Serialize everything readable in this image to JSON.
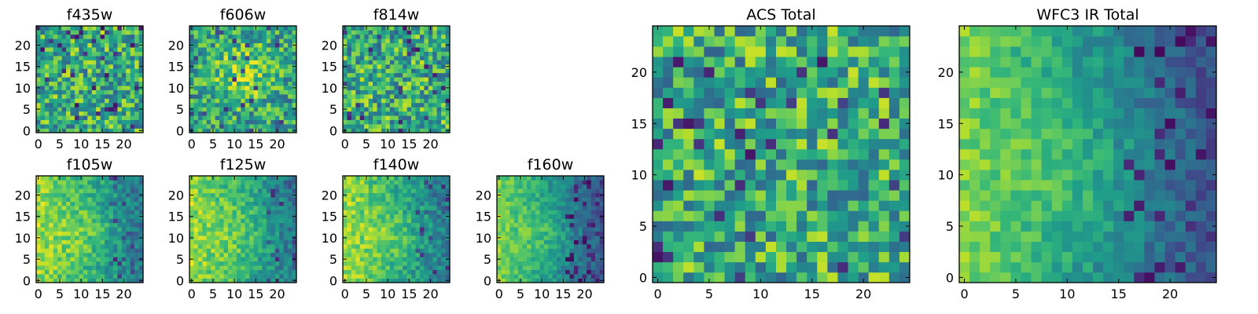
{
  "chart_data": [
    {
      "type": "heatmap",
      "title": "f435w",
      "x_ticks": [
        "0",
        "5",
        "10",
        "15",
        "20"
      ],
      "y_ticks": [
        "0",
        "5",
        "10",
        "15",
        "20"
      ],
      "xlim": [
        -0.5,
        24.5
      ],
      "ylim": [
        -0.5,
        24.5
      ],
      "grid": 25,
      "colormap": "viridis",
      "pattern": "noise"
    },
    {
      "type": "heatmap",
      "title": "f606w",
      "x_ticks": [
        "0",
        "5",
        "10",
        "15",
        "20"
      ],
      "y_ticks": [
        "0",
        "5",
        "10",
        "15",
        "20"
      ],
      "xlim": [
        -0.5,
        24.5
      ],
      "ylim": [
        -0.5,
        24.5
      ],
      "grid": 25,
      "colormap": "viridis",
      "pattern": "noise-bright-center"
    },
    {
      "type": "heatmap",
      "title": "f814w",
      "x_ticks": [
        "0",
        "5",
        "10",
        "15",
        "20"
      ],
      "y_ticks": [
        "0",
        "5",
        "10",
        "15",
        "20"
      ],
      "xlim": [
        -0.5,
        24.5
      ],
      "ylim": [
        -0.5,
        24.5
      ],
      "grid": 25,
      "colormap": "viridis",
      "pattern": "noise"
    },
    {
      "type": "heatmap",
      "title": "f105w",
      "x_ticks": [
        "0",
        "5",
        "10",
        "15",
        "20"
      ],
      "y_ticks": [
        "0",
        "5",
        "10",
        "15",
        "20"
      ],
      "xlim": [
        -0.5,
        24.5
      ],
      "ylim": [
        -0.5,
        24.5
      ],
      "grid": 25,
      "colormap": "viridis",
      "pattern": "gradient-left"
    },
    {
      "type": "heatmap",
      "title": "f125w",
      "x_ticks": [
        "0",
        "5",
        "10",
        "15",
        "20"
      ],
      "y_ticks": [
        "0",
        "5",
        "10",
        "15",
        "20"
      ],
      "xlim": [
        -0.5,
        24.5
      ],
      "ylim": [
        -0.5,
        24.5
      ],
      "grid": 25,
      "colormap": "viridis",
      "pattern": "gradient-left"
    },
    {
      "type": "heatmap",
      "title": "f140w",
      "x_ticks": [
        "0",
        "5",
        "10",
        "15",
        "20"
      ],
      "y_ticks": [
        "0",
        "5",
        "10",
        "15",
        "20"
      ],
      "xlim": [
        -0.5,
        24.5
      ],
      "ylim": [
        -0.5,
        24.5
      ],
      "grid": 25,
      "colormap": "viridis",
      "pattern": "gradient-left"
    },
    {
      "type": "heatmap",
      "title": "f160w",
      "x_ticks": [
        "0",
        "5",
        "10",
        "15",
        "20"
      ],
      "y_ticks": [
        "0",
        "5",
        "10",
        "15",
        "20"
      ],
      "xlim": [
        -0.5,
        24.5
      ],
      "ylim": [
        -0.5,
        24.5
      ],
      "grid": 25,
      "colormap": "viridis",
      "pattern": "gradient-left-dark"
    },
    {
      "type": "heatmap",
      "title": "ACS Total",
      "x_ticks": [
        "0",
        "5",
        "10",
        "15",
        "20"
      ],
      "y_ticks": [
        "0",
        "5",
        "10",
        "15",
        "20"
      ],
      "xlim": [
        -0.5,
        24.5
      ],
      "ylim": [
        -0.5,
        24.5
      ],
      "grid": 25,
      "colormap": "viridis",
      "pattern": "noise"
    },
    {
      "type": "heatmap",
      "title": "WFC3 IR Total",
      "x_ticks": [
        "0",
        "5",
        "10",
        "15",
        "20"
      ],
      "y_ticks": [
        "0",
        "5",
        "10",
        "15",
        "20"
      ],
      "xlim": [
        -0.5,
        24.5
      ],
      "ylim": [
        -0.5,
        24.5
      ],
      "grid": 25,
      "colormap": "viridis",
      "pattern": "gradient-left-dark"
    }
  ]
}
